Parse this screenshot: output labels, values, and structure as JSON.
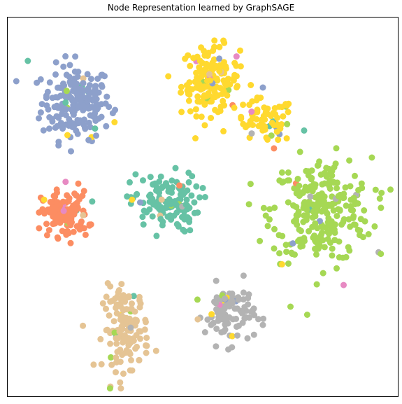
{
  "chart_data": {
    "type": "scatter",
    "title": "Node Representation learned by GraphSAGE",
    "xlabel": "",
    "ylabel": "",
    "xlim": [
      0,
      100
    ],
    "ylim": [
      0,
      100
    ],
    "axis_ticks": false,
    "grid": false,
    "legend": "none",
    "marker_size": 9,
    "colors": [
      "#66c2a5",
      "#fc8d62",
      "#8da0cb",
      "#e78ac3",
      "#a6d854",
      "#ffd92f",
      "#e5c494",
      "#b3b3b3"
    ],
    "clusters": [
      {
        "color": "#8da0cb",
        "cx": 17,
        "cy": 78,
        "sx": 4.5,
        "sy": 5.0,
        "n": 190
      },
      {
        "color": "#ffd92f",
        "cx": 52,
        "cy": 84,
        "sx": 3.8,
        "sy": 4.6,
        "n": 150
      },
      {
        "color": "#ffd92f",
        "cx": 66,
        "cy": 73,
        "sx": 4.0,
        "sy": 3.0,
        "n": 60
      },
      {
        "color": "#a6d854",
        "cx": 81,
        "cy": 49,
        "sx": 6.5,
        "sy": 7.0,
        "n": 270
      },
      {
        "color": "#66c2a5",
        "cx": 40,
        "cy": 51,
        "sx": 4.5,
        "sy": 4.0,
        "n": 120
      },
      {
        "color": "#fc8d62",
        "cx": 14,
        "cy": 48,
        "sx": 3.0,
        "sy": 3.0,
        "n": 110
      },
      {
        "color": "#e5c494",
        "cx": 30,
        "cy": 17,
        "sx": 3.0,
        "sy": 5.5,
        "n": 130
      },
      {
        "color": "#b3b3b3",
        "cx": 57,
        "cy": 21,
        "sx": 3.2,
        "sy": 4.0,
        "n": 90
      }
    ],
    "noise_per_cluster": 12
  }
}
